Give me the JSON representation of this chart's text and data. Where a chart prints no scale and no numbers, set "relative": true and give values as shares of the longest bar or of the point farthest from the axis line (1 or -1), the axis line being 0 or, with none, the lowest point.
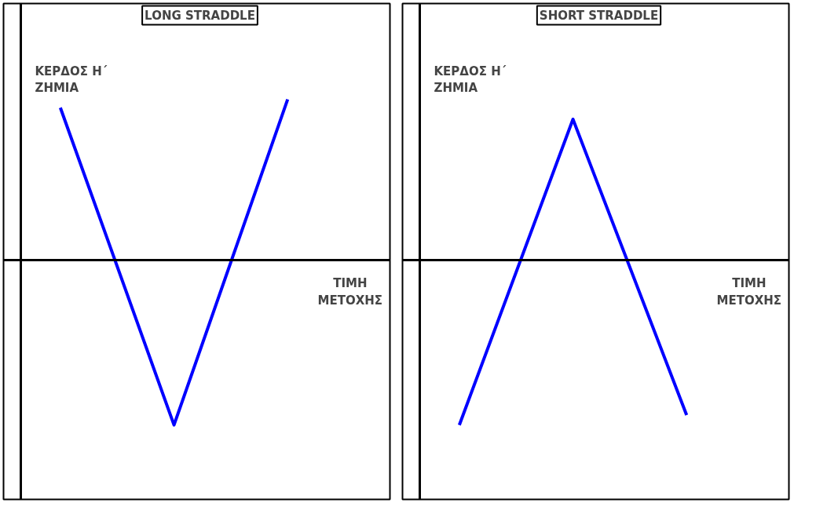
{
  "chart_data": [
    {
      "type": "line",
      "title": "LONG STRADDLE",
      "xlabel": "ΤΙΜΗ ΜΕΤΟΧΗΣ",
      "ylabel": "ΚΕΡΔΟΣ Η΄ ΖΗΜΙΑ",
      "relative": true,
      "categories": [
        null,
        null,
        null
      ],
      "series": [
        {
          "color": "#0000ff",
          "values": [
            0.92,
            -1,
            0.97
          ]
        }
      ]
    },
    {
      "type": "line",
      "title": "SHORT STRADDLE",
      "xlabel": "ΤΙΜΗ ΜΕΤΟΧΗΣ",
      "ylabel": "ΚΕΡΔΟΣ Η΄ ΖΗΜΙΑ",
      "relative": true,
      "categories": [
        null,
        null,
        null
      ],
      "series": [
        {
          "color": "#0000ff",
          "values": [
            -1,
            0.85,
            -0.94
          ]
        }
      ]
    }
  ]
}
